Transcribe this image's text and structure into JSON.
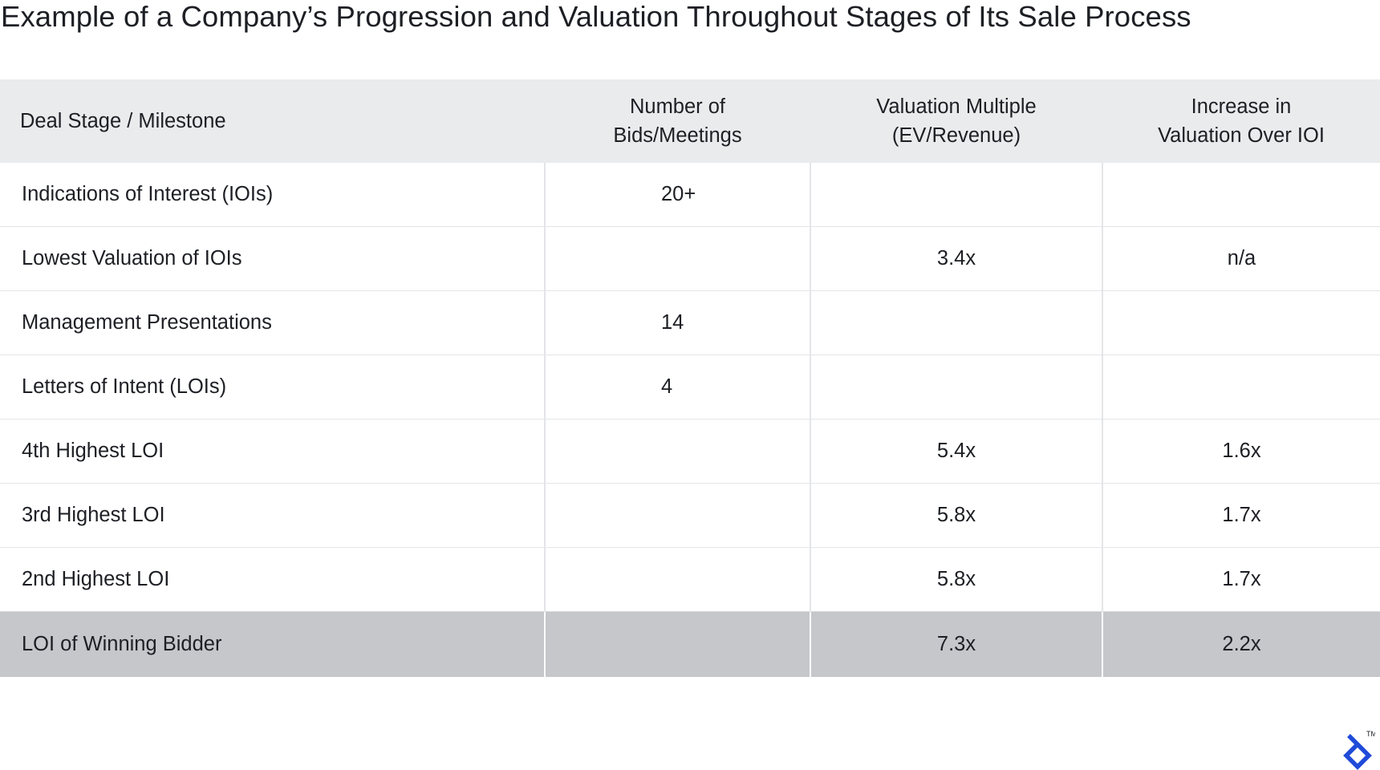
{
  "title": "Example of a Company’s Progression and Valuation Throughout Stages of Its Sale Process",
  "table": {
    "headers": [
      {
        "lines": [
          "Deal Stage / Milestone"
        ]
      },
      {
        "lines": [
          "Number of",
          "Bids/Meetings"
        ]
      },
      {
        "lines": [
          "Valuation Multiple",
          "(EV/Revenue)"
        ]
      },
      {
        "lines": [
          "Increase in",
          "Valuation Over IOI"
        ]
      }
    ],
    "rows": [
      {
        "stage": "Indications of Interest (IOIs)",
        "bids": "20+",
        "multiple": "",
        "increase": ""
      },
      {
        "stage": "Lowest Valuation of IOIs",
        "bids": "",
        "multiple": "3.4x",
        "increase": "n/a"
      },
      {
        "stage": "Management Presentations",
        "bids": "14",
        "multiple": "",
        "increase": ""
      },
      {
        "stage": "Letters of Intent (LOIs)",
        "bids": "4",
        "multiple": "",
        "increase": ""
      },
      {
        "stage": "4th Highest LOI",
        "bids": "",
        "multiple": "5.4x",
        "increase": "1.6x"
      },
      {
        "stage": "3rd Highest LOI",
        "bids": "",
        "multiple": "5.8x",
        "increase": "1.7x"
      },
      {
        "stage": "2nd Highest LOI",
        "bids": "",
        "multiple": "5.8x",
        "increase": "1.7x"
      },
      {
        "stage": "LOI of Winning Bidder",
        "bids": "",
        "multiple": "7.3x",
        "increase": "2.2x"
      }
    ],
    "highlighted_row": "LOI of Winning Bidder"
  },
  "logo": {
    "icon": "toptal-logo-icon",
    "trademark": "TM"
  },
  "colors": {
    "text": "#1d1f24",
    "header_background": "#eaebed",
    "highlight_row_background": "#c5c7cb",
    "grid_line": "#e4e5e8",
    "logo": "#1f4bd8"
  }
}
